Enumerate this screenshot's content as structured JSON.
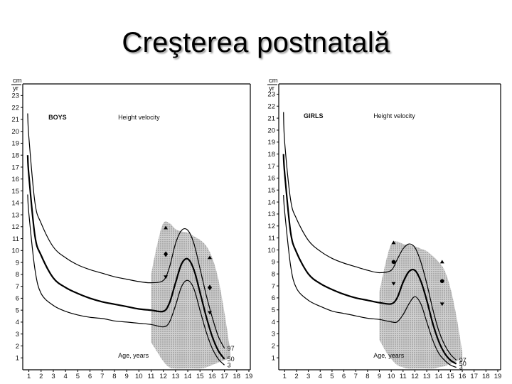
{
  "title": "Creşterea postnatală",
  "colors": {
    "band": "#cfcfcf",
    "curve": "#000000",
    "axis": "#000000"
  },
  "chart_data": [
    {
      "type": "line",
      "panel_label": "BOYS",
      "subtitle": "Height velocity",
      "xlabel": "Age, years",
      "ylabel_top": "cm",
      "ylabel_bottom": "yr",
      "xlim": [
        0.5,
        19
      ],
      "ylim": [
        0,
        23.5
      ],
      "xticks": [
        1,
        2,
        3,
        4,
        5,
        6,
        7,
        8,
        9,
        10,
        11,
        12,
        13,
        14,
        15,
        16,
        17,
        18,
        19
      ],
      "yticks": [
        1,
        2,
        3,
        4,
        5,
        6,
        7,
        8,
        9,
        10,
        11,
        12,
        13,
        14,
        15,
        16,
        17,
        18,
        19,
        20,
        21,
        22,
        23
      ],
      "band": {
        "x": [
          11,
          11.5,
          12,
          12.5,
          13,
          13.5,
          14,
          14.5,
          15,
          15.5,
          16,
          16.5,
          17,
          17.5
        ],
        "upper": [
          8,
          10.5,
          12.3,
          12.3,
          11.8,
          11.6,
          11.5,
          11.2,
          10.9,
          10.4,
          9.4,
          7.6,
          4.8,
          1.4
        ],
        "lower": [
          2.3,
          1.5,
          0.7,
          0.2,
          0.1,
          0.1,
          0.1,
          0.1,
          0.1,
          0.2,
          0.4,
          0.6,
          0.8,
          1.0
        ]
      },
      "series": [
        {
          "name": "97",
          "x": [
            0.9,
            1,
            1.5,
            2,
            3,
            4,
            5,
            6,
            7,
            8,
            9,
            10,
            11,
            12,
            12.5,
            13,
            13.5,
            14,
            14.5,
            15,
            15.5,
            16,
            16.5,
            17
          ],
          "y": [
            21.5,
            19.5,
            14,
            12.3,
            10.3,
            9.4,
            8.8,
            8.4,
            8.1,
            7.8,
            7.6,
            7.4,
            7.3,
            7.5,
            8.6,
            10.6,
            11.7,
            11.7,
            10.6,
            8.5,
            6.3,
            4.4,
            2.8,
            1.8
          ]
        },
        {
          "name": "50",
          "x": [
            0.9,
            1,
            1.5,
            2,
            3,
            4,
            5,
            6,
            7,
            8,
            9,
            10,
            11,
            12,
            12.5,
            13,
            13.5,
            14,
            14.5,
            15,
            15.5,
            16,
            16.5,
            17
          ],
          "y": [
            18,
            16.3,
            11.2,
            9.6,
            7.7,
            6.9,
            6.4,
            6.0,
            5.7,
            5.5,
            5.3,
            5.1,
            5.0,
            4.9,
            5.6,
            7.3,
            8.9,
            9.3,
            8.4,
            6.5,
            4.5,
            2.8,
            1.6,
            0.9
          ]
        },
        {
          "name": "3",
          "x": [
            0.9,
            1,
            1.5,
            2,
            3,
            4,
            5,
            6,
            7,
            8,
            9,
            10,
            11,
            12,
            12.5,
            13,
            13.5,
            14,
            14.5,
            15,
            15.5,
            16,
            16.5,
            17
          ],
          "y": [
            14.7,
            13.1,
            8.4,
            6.4,
            5.4,
            4.9,
            4.6,
            4.4,
            4.3,
            4.1,
            4.0,
            3.9,
            3.8,
            3.6,
            4.0,
            5.4,
            7.0,
            7.5,
            6.8,
            5.0,
            3.2,
            1.8,
            0.9,
            0.4
          ]
        }
      ],
      "markers": [
        {
          "shape": "^",
          "x": 12.2,
          "y": 11.9
        },
        {
          "shape": "♦",
          "x": 12.2,
          "y": 9.7
        },
        {
          "shape": "v",
          "x": 12.2,
          "y": 7.8
        },
        {
          "shape": "^",
          "x": 15.8,
          "y": 9.4
        },
        {
          "shape": "♦",
          "x": 15.8,
          "y": 6.9
        },
        {
          "shape": "v",
          "x": 15.8,
          "y": 4.8
        }
      ]
    },
    {
      "type": "line",
      "panel_label": "GIRLS",
      "subtitle": "Height velocity",
      "xlabel": "Age, years",
      "ylabel_top": "cm",
      "ylabel_bottom": "yr",
      "xlim": [
        0.5,
        19
      ],
      "ylim": [
        0,
        23.5
      ],
      "xticks": [
        1,
        2,
        3,
        4,
        5,
        6,
        7,
        8,
        9,
        10,
        11,
        12,
        13,
        14,
        15,
        16,
        17,
        18,
        19
      ],
      "yticks": [
        1,
        2,
        3,
        4,
        5,
        6,
        7,
        8,
        9,
        10,
        11,
        12,
        13,
        14,
        15,
        16,
        17,
        18,
        19,
        20,
        21,
        22,
        23
      ],
      "band": {
        "x": [
          9,
          9.5,
          10,
          10.5,
          11,
          11.5,
          12,
          12.5,
          13,
          13.5,
          14,
          14.5,
          15,
          15.5,
          16
        ],
        "upper": [
          6.5,
          8.8,
          10.5,
          10.7,
          10.5,
          10.4,
          10.3,
          10.1,
          9.9,
          9.5,
          9.0,
          8.3,
          6.8,
          4.5,
          1.5
        ],
        "lower": [
          2.5,
          1.6,
          0.9,
          0.4,
          0.2,
          0.1,
          0.1,
          0.1,
          0.1,
          0.1,
          0.2,
          0.3,
          0.5,
          0.7,
          0.9
        ]
      },
      "series": [
        {
          "name": "97",
          "x": [
            0.9,
            1,
            1.5,
            2,
            3,
            4,
            5,
            6,
            7,
            8,
            9,
            10,
            10.5,
            11,
            11.5,
            12,
            12.5,
            13,
            13.5,
            14,
            14.5,
            15,
            15.5
          ],
          "y": [
            21.5,
            19,
            14.2,
            12.6,
            10.8,
            9.9,
            9.3,
            8.9,
            8.6,
            8.3,
            8.1,
            8.3,
            9.2,
            10.1,
            10.5,
            10.2,
            9.0,
            7.2,
            5.1,
            3.3,
            2.1,
            1.3,
            0.8
          ]
        },
        {
          "name": "50",
          "x": [
            0.9,
            1,
            1.5,
            2,
            3,
            4,
            5,
            6,
            7,
            8,
            9,
            10,
            10.5,
            11,
            11.5,
            12,
            12.5,
            13,
            13.5,
            14,
            14.5,
            15,
            15.5
          ],
          "y": [
            18,
            16.4,
            11.5,
            9.8,
            8.0,
            7.2,
            6.7,
            6.3,
            6.0,
            5.8,
            5.6,
            5.5,
            6.0,
            7.3,
            8.2,
            8.3,
            7.4,
            5.8,
            3.9,
            2.4,
            1.4,
            0.8,
            0.5
          ]
        },
        {
          "name": "3",
          "x": [
            0.9,
            1,
            1.5,
            2,
            3,
            4,
            5,
            6,
            7,
            8,
            9,
            10,
            10.5,
            11,
            11.5,
            12,
            12.5,
            13,
            13.5,
            14,
            14.5,
            15,
            15.5
          ],
          "y": [
            14.6,
            13.2,
            8.7,
            6.8,
            5.8,
            5.3,
            4.9,
            4.7,
            4.5,
            4.3,
            4.2,
            4.0,
            4.0,
            4.6,
            5.5,
            6.1,
            5.5,
            4.0,
            2.5,
            1.4,
            0.8,
            0.4,
            0.2
          ]
        }
      ],
      "markers": [
        {
          "shape": "^",
          "x": 10.2,
          "y": 10.6
        },
        {
          "shape": "●",
          "x": 10.2,
          "y": 9.0
        },
        {
          "shape": "v",
          "x": 10.2,
          "y": 7.2
        },
        {
          "shape": "^",
          "x": 14.3,
          "y": 9.0
        },
        {
          "shape": "●",
          "x": 14.3,
          "y": 7.4
        },
        {
          "shape": "v",
          "x": 14.3,
          "y": 5.5
        }
      ]
    }
  ]
}
